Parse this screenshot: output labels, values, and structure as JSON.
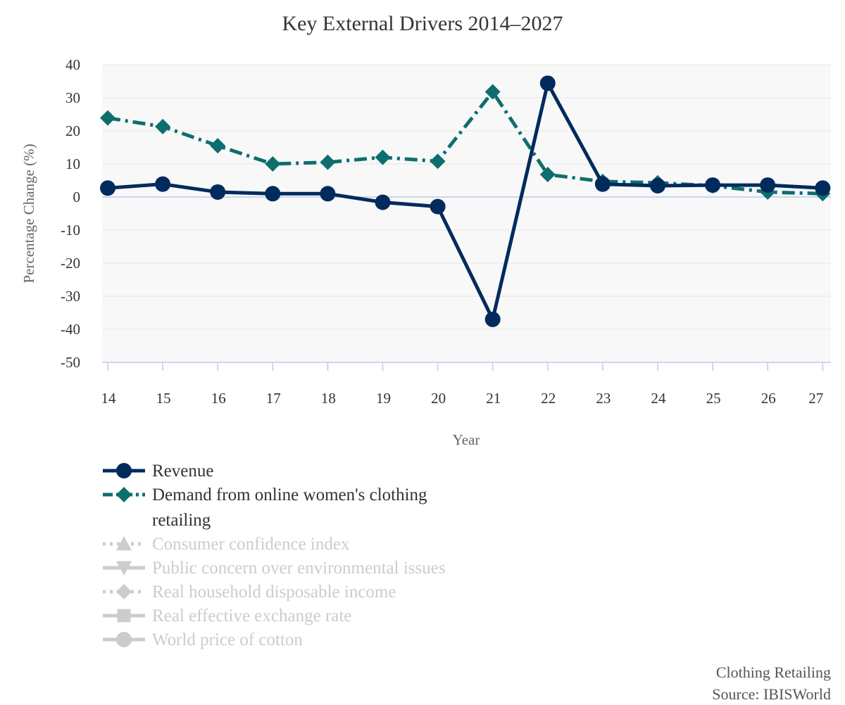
{
  "chart_data": {
    "type": "line",
    "title": "Key External Drivers 2014–2027",
    "xlabel": "Year",
    "ylabel": "Percentage Change (%)",
    "categories": [
      "14",
      "15",
      "16",
      "17",
      "18",
      "19",
      "20",
      "21",
      "22",
      "23",
      "24",
      "25",
      "26",
      "27"
    ],
    "ylim": [
      -50,
      40
    ],
    "yticks": [
      "40",
      "30",
      "20",
      "10",
      "0",
      "-10",
      "-20",
      "-30",
      "-40",
      "-50"
    ],
    "grid": true,
    "legend_position": "bottom-left",
    "series": [
      {
        "name": "Revenue",
        "color": "#002b5c",
        "line_style": "solid",
        "marker": "circle",
        "visible": true,
        "values": [
          2.7,
          3.9,
          1.5,
          1.0,
          1.0,
          -1.6,
          -2.9,
          -37.0,
          34.4,
          3.9,
          3.4,
          3.6,
          3.6,
          2.7
        ]
      },
      {
        "name": "Demand from online women's clothing retailing",
        "color": "#0e6e6e",
        "line_style": "dashdot",
        "marker": "diamond",
        "visible": true,
        "values": [
          23.9,
          21.3,
          15.5,
          10.0,
          10.5,
          12.0,
          10.8,
          31.8,
          6.8,
          4.7,
          4.3,
          3.4,
          1.5,
          1.0
        ]
      },
      {
        "name": "Consumer confidence index",
        "marker": "triangle",
        "line_style": "dotted",
        "visible": false
      },
      {
        "name": "Public concern over environmental issues",
        "marker": "triangle-down",
        "line_style": "solid",
        "visible": false
      },
      {
        "name": "Real household disposable income",
        "marker": "diamond",
        "line_style": "dotted",
        "visible": false
      },
      {
        "name": "Real effective exchange rate",
        "marker": "square",
        "line_style": "solid",
        "visible": false
      },
      {
        "name": "World price of cotton",
        "marker": "circle",
        "line_style": "solid",
        "visible": false
      }
    ]
  },
  "source": {
    "industry": "Clothing Retailing",
    "credit": "Source: IBISWorld"
  },
  "colors": {
    "plot_background": "#f8f8f9",
    "gridline": "#e6e6e6",
    "zero_line": "#ccd6eb",
    "hidden_legend": "#cccccc"
  }
}
